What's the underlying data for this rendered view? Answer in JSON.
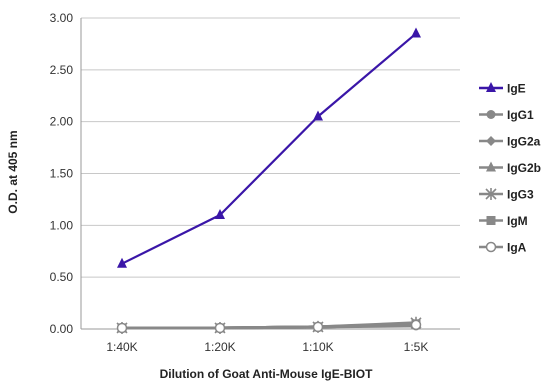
{
  "chart_data": {
    "type": "line",
    "title": "",
    "xlabel": "Dilution of Goat Anti-Mouse IgE-BIOT",
    "ylabel": "O.D. at 405 nm",
    "categories": [
      "1:40K",
      "1:20K",
      "1:10K",
      "1:5K"
    ],
    "ylim": [
      0,
      3.0
    ],
    "yticks": [
      "0.00",
      "0.50",
      "1.00",
      "1.50",
      "2.00",
      "2.50",
      "3.00"
    ],
    "ytick_values": [
      0,
      0.5,
      1.0,
      1.5,
      2.0,
      2.5,
      3.0
    ],
    "grid": "horizontal",
    "legend_position": "right",
    "series": [
      {
        "name": "IgE",
        "values": [
          0.63,
          1.1,
          2.05,
          2.85
        ],
        "color": "#3a16a8",
        "marker": "triangle"
      },
      {
        "name": "IgG1",
        "values": [
          0.01,
          0.01,
          0.02,
          0.03
        ],
        "color": "#888888",
        "marker": "circle"
      },
      {
        "name": "IgG2a",
        "values": [
          0.01,
          0.01,
          0.02,
          0.04
        ],
        "color": "#888888",
        "marker": "diamond"
      },
      {
        "name": "IgG2b",
        "values": [
          0.01,
          0.01,
          0.02,
          0.04
        ],
        "color": "#888888",
        "marker": "triangle"
      },
      {
        "name": "IgG3",
        "values": [
          0.01,
          0.01,
          0.02,
          0.06
        ],
        "color": "#888888",
        "marker": "star"
      },
      {
        "name": "IgM",
        "values": [
          0.01,
          0.01,
          0.02,
          0.05
        ],
        "color": "#888888",
        "marker": "square"
      },
      {
        "name": "IgA",
        "values": [
          0.01,
          0.01,
          0.02,
          0.04
        ],
        "color": "#888888",
        "marker": "circle-open"
      }
    ]
  }
}
